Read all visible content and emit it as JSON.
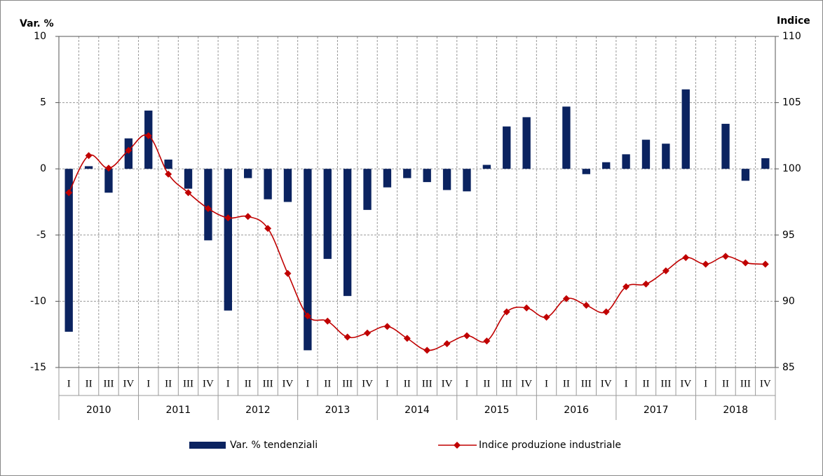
{
  "chart_data": {
    "type": "combo",
    "y_label": "Var. %",
    "y2_label": "Indice",
    "categories": [
      "I",
      "II",
      "III",
      "IV",
      "I",
      "II",
      "III",
      "IV",
      "I",
      "II",
      "III",
      "IV",
      "I",
      "II",
      "III",
      "IV",
      "I",
      "II",
      "III",
      "IV",
      "I",
      "II",
      "III",
      "IV",
      "I",
      "II",
      "III",
      "IV",
      "I",
      "II",
      "III",
      "IV",
      "I",
      "II",
      "III",
      "IV"
    ],
    "years": [
      "2010",
      "2011",
      "2012",
      "2013",
      "2014",
      "2015",
      "2016",
      "2017",
      "2018"
    ],
    "ylim": [
      -15,
      10
    ],
    "yticks": [
      -15,
      -10,
      -5,
      0,
      5,
      10
    ],
    "y2lim": [
      85,
      110
    ],
    "y2ticks": [
      85,
      90,
      95,
      100,
      105,
      110
    ],
    "grid": true,
    "legend": "bottom",
    "series": [
      {
        "name": "Var. % tendenziali",
        "type": "bar",
        "color": "#0b2360",
        "values": [
          -12.3,
          0.2,
          -1.8,
          2.3,
          4.4,
          0.7,
          -1.5,
          -5.4,
          -10.7,
          -0.7,
          -2.3,
          -2.5,
          -13.7,
          -6.8,
          -9.6,
          -3.1,
          -1.4,
          -0.7,
          -1.0,
          -1.6,
          -1.7,
          0.3,
          3.2,
          3.9,
          0.0,
          4.7,
          -0.4,
          0.5,
          1.1,
          2.2,
          1.9,
          6.0,
          0.0,
          3.4,
          -0.9,
          0.8
        ]
      },
      {
        "name": "Indice produzione industriale",
        "type": "line",
        "axis": "y2",
        "color": "#c00000",
        "values": [
          98.2,
          101.0,
          100.05,
          101.4,
          102.5,
          99.6,
          98.2,
          97.0,
          96.3,
          96.4,
          95.5,
          92.1,
          88.9,
          88.5,
          87.3,
          87.6,
          88.1,
          87.2,
          86.3,
          86.8,
          87.4,
          87.0,
          89.2,
          89.5,
          88.8,
          90.2,
          89.7,
          89.2,
          91.1,
          91.3,
          92.3,
          93.3,
          92.8,
          93.4,
          92.9,
          92.8
        ]
      }
    ]
  }
}
